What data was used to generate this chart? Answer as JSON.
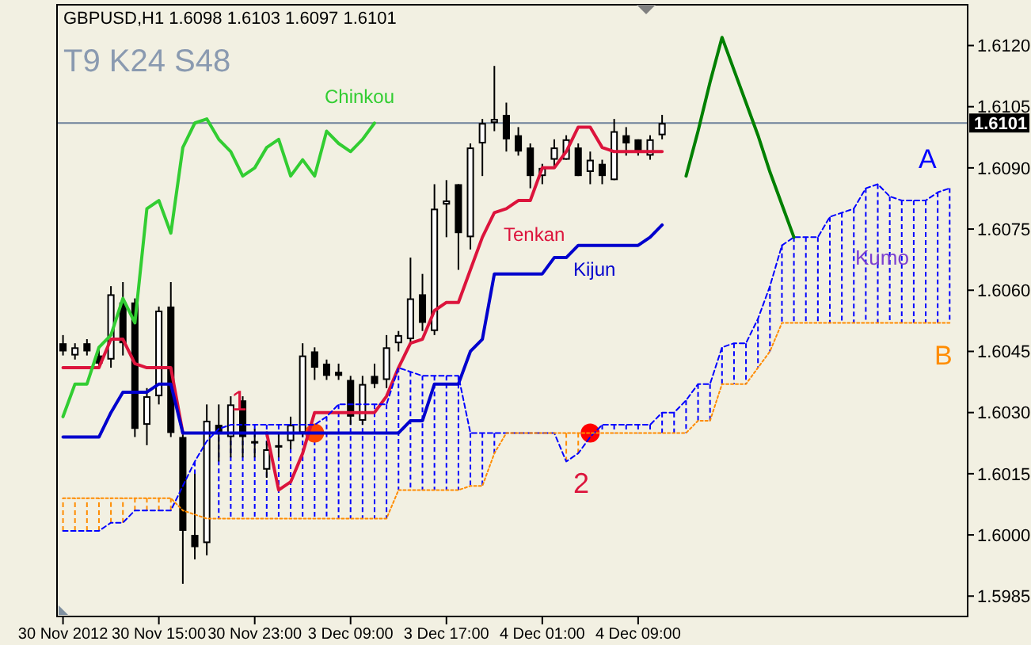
{
  "chart_data": {
    "type": "candlestick",
    "title": "GBPUSD,H1  1.6098 1.6103 1.6097 1.6101",
    "categories": [
      "30 Nov 2012",
      null,
      null,
      null,
      null,
      null,
      null,
      null,
      "30 Nov 15:00",
      null,
      null,
      null,
      null,
      null,
      null,
      null,
      "30 Nov 23:00",
      null,
      null,
      null,
      null,
      null,
      null,
      null,
      "3 Dec 09:00",
      null,
      null,
      null,
      null,
      null,
      null,
      null,
      "3 Dec 17:00",
      null,
      null,
      null,
      null,
      null,
      null,
      null,
      "4 Dec 01:00",
      null,
      null,
      null,
      null,
      null,
      null,
      null,
      "4 Dec 09:00",
      null,
      null,
      null,
      null,
      null,
      null,
      null,
      null,
      null,
      null,
      null,
      null,
      null,
      null,
      null,
      null,
      null,
      null,
      null,
      null,
      null,
      null,
      null,
      null,
      null,
      null,
      null
    ],
    "ohlc": [
      [
        1.6047,
        1.6049,
        1.6044,
        1.6045
      ],
      [
        1.6044,
        1.6047,
        1.6043,
        1.6046
      ],
      [
        1.6047,
        1.6048,
        1.6044,
        1.6045
      ],
      [
        1.6044,
        1.6046,
        1.6041,
        1.6042
      ],
      [
        1.6043,
        1.6061,
        1.6041,
        1.6059
      ],
      [
        1.6057,
        1.6062,
        1.6044,
        1.6047
      ],
      [
        1.6057,
        1.6058,
        1.6024,
        1.6026
      ],
      [
        1.6027,
        1.6036,
        1.6022,
        1.6034
      ],
      [
        1.6034,
        1.6056,
        1.6032,
        1.6055
      ],
      [
        1.6056,
        1.6062,
        1.6024,
        1.6025
      ],
      [
        1.6024,
        1.6025,
        1.5988,
        1.6001
      ],
      [
        1.6,
        1.6015,
        1.5994,
        1.5997
      ],
      [
        1.5998,
        1.6032,
        1.5995,
        1.6028
      ],
      [
        1.6027,
        1.6032,
        1.6018,
        1.6025
      ],
      [
        1.6024,
        1.6034,
        1.6019,
        1.6032
      ],
      [
        1.6033,
        1.6034,
        1.6019,
        1.6024
      ],
      [
        1.6023,
        1.6026,
        1.6019,
        1.6023
      ],
      [
        1.6016,
        1.6023,
        1.6014,
        1.6021
      ],
      [
        1.6022,
        1.6025,
        1.6019,
        1.6022
      ],
      [
        1.6023,
        1.6029,
        1.6021,
        1.6027
      ],
      [
        1.6025,
        1.6047,
        1.6024,
        1.6044
      ],
      [
        1.6045,
        1.6046,
        1.6038,
        1.6041
      ],
      [
        1.6042,
        1.6043,
        1.6038,
        1.6039
      ],
      [
        1.604,
        1.6042,
        1.6038,
        1.6039
      ],
      [
        1.6038,
        1.6039,
        1.6027,
        1.6029
      ],
      [
        1.6028,
        1.6039,
        1.6027,
        1.6037
      ],
      [
        1.6039,
        1.6042,
        1.6036,
        1.6037
      ],
      [
        1.6038,
        1.6049,
        1.6036,
        1.6046
      ],
      [
        1.6047,
        1.605,
        1.6045,
        1.6049
      ],
      [
        1.6048,
        1.6068,
        1.6047,
        1.6058
      ],
      [
        1.6059,
        1.6064,
        1.605,
        1.6052
      ],
      [
        1.605,
        1.6086,
        1.6049,
        1.608
      ],
      [
        1.6081,
        1.6087,
        1.6073,
        1.6082
      ],
      [
        1.6086,
        1.6086,
        1.6065,
        1.6074
      ],
      [
        1.6073,
        1.6096,
        1.607,
        1.6095
      ],
      [
        1.6096,
        1.6102,
        1.6088,
        1.6101
      ],
      [
        1.6101,
        1.6115,
        1.6099,
        1.6102
      ],
      [
        1.6103,
        1.6106,
        1.6094,
        1.6097
      ],
      [
        1.6098,
        1.61,
        1.6093,
        1.6094
      ],
      [
        1.6095,
        1.6096,
        1.6085,
        1.6088
      ],
      [
        1.6088,
        1.6091,
        1.6086,
        1.609
      ],
      [
        1.6092,
        1.6097,
        1.609,
        1.6095
      ],
      [
        1.6092,
        1.6098,
        1.6092,
        1.6097
      ],
      [
        1.6095,
        1.6096,
        1.6088,
        1.6088
      ],
      [
        1.6089,
        1.6094,
        1.6086,
        1.6092
      ],
      [
        1.6091,
        1.6092,
        1.6086,
        1.6088
      ],
      [
        1.6087,
        1.6102,
        1.6087,
        1.6099
      ],
      [
        1.6098,
        1.61,
        1.6093,
        1.6096
      ],
      [
        1.6097,
        1.6097,
        1.6093,
        1.6094
      ],
      [
        1.6093,
        1.6098,
        1.6092,
        1.6097
      ],
      [
        1.6098,
        1.6103,
        1.6097,
        1.6101
      ],
      null,
      null,
      null,
      null,
      null,
      null,
      null,
      null,
      null,
      null,
      null,
      null,
      null,
      null,
      null,
      null,
      null,
      null,
      null,
      null,
      null,
      null,
      null,
      null,
      null
    ],
    "series": [
      {
        "name": "Tenkan",
        "type": "line",
        "color": "#dc143c",
        "values": [
          1.6041,
          1.6041,
          1.6041,
          1.6041,
          1.6048,
          1.6048,
          1.6042,
          1.6041,
          1.6041,
          1.6041,
          1.6025,
          null,
          null,
          null,
          null,
          null,
          null,
          1.6025,
          1.6011,
          1.6013,
          1.602,
          1.603,
          1.603,
          1.603,
          1.603,
          1.603,
          1.603,
          1.6034,
          1.6041,
          1.6047,
          1.6048,
          1.6055,
          1.6057,
          1.6057,
          1.6065,
          1.6073,
          1.6079,
          1.608,
          1.6082,
          1.6082,
          1.609,
          1.609,
          1.6094,
          1.61,
          1.61,
          1.6095,
          1.6094,
          1.6094,
          1.6094,
          1.6094,
          1.6094,
          null,
          null,
          null,
          null,
          null,
          null,
          null,
          null,
          null,
          null,
          null,
          null,
          null,
          null,
          null,
          null,
          null,
          null,
          null,
          null,
          null,
          null,
          null,
          null,
          null
        ]
      },
      {
        "name": "Kijun",
        "type": "line",
        "color": "#0000cd",
        "values": [
          1.6024,
          1.6024,
          1.6024,
          1.6024,
          1.603,
          1.6035,
          1.6035,
          1.6035,
          1.6037,
          1.6037,
          1.6025,
          1.6025,
          1.6025,
          1.6025,
          1.6025,
          1.6025,
          1.6025,
          1.6025,
          1.6025,
          1.6025,
          1.6025,
          1.6025,
          1.6025,
          1.6025,
          1.6025,
          1.6025,
          1.6025,
          1.6025,
          1.6025,
          1.6028,
          1.6028,
          1.6037,
          1.6037,
          1.6037,
          1.6045,
          1.6048,
          1.6064,
          1.6064,
          1.6064,
          1.6064,
          1.6064,
          1.6068,
          1.6068,
          1.6071,
          1.6071,
          1.6071,
          1.6071,
          1.6071,
          1.6071,
          1.6073,
          1.6076,
          null,
          null,
          null,
          null,
          null,
          null,
          null,
          null,
          null,
          null,
          null,
          null,
          null,
          null,
          null,
          null,
          null,
          null,
          null,
          null,
          null,
          null,
          null,
          null,
          null
        ]
      },
      {
        "name": "Chinkou",
        "type": "line",
        "color": "#32cd32",
        "values": [
          1.6029,
          1.6037,
          1.6037,
          1.6046,
          1.6049,
          1.6058,
          1.6052,
          1.608,
          1.6082,
          1.6074,
          1.6095,
          1.6101,
          1.6102,
          1.6097,
          1.6094,
          1.6088,
          1.609,
          1.6095,
          1.6097,
          1.6088,
          1.6092,
          1.6088,
          1.6099,
          1.6096,
          1.6094,
          1.6097,
          1.6101,
          null,
          null,
          null,
          null,
          null,
          null,
          null,
          null,
          null,
          null,
          null,
          null,
          null,
          null,
          null,
          null,
          null,
          null,
          null,
          null,
          null,
          null,
          null,
          null,
          null,
          null,
          null,
          null,
          null,
          null,
          null,
          null,
          null,
          null,
          null,
          null,
          null,
          null,
          null,
          null,
          null,
          null,
          null,
          null,
          null,
          null,
          null,
          null,
          null
        ]
      },
      {
        "name": "A",
        "type": "line",
        "line_style": "dashed",
        "color": "#0000ff",
        "values": [
          1.6001,
          1.6001,
          1.6001,
          1.6001,
          1.6003,
          1.6003,
          1.6006,
          1.6006,
          1.6006,
          1.6006,
          1.6012,
          1.6018,
          1.6023,
          1.6026,
          1.6027,
          1.6027,
          1.6027,
          1.6027,
          1.6027,
          1.6027,
          1.6027,
          1.6027,
          1.6029,
          1.6032,
          1.6032,
          1.6032,
          1.6032,
          1.6032,
          1.6041,
          1.604,
          1.6039,
          1.6039,
          1.6039,
          1.6039,
          1.6025,
          1.6025,
          1.6025,
          1.6025,
          1.6025,
          1.6025,
          1.6025,
          1.6025,
          1.6018,
          1.602,
          1.6024,
          1.6027,
          1.6027,
          1.6027,
          1.6027,
          1.6027,
          1.603,
          1.603,
          1.6033,
          1.6037,
          1.6037,
          1.6046,
          1.6047,
          1.6047,
          1.6053,
          1.6061,
          1.6071,
          1.6073,
          1.6073,
          1.6073,
          1.6078,
          1.6079,
          1.608,
          1.6085,
          1.6086,
          1.6083,
          1.6082,
          1.6082,
          1.6082,
          1.6084,
          1.6085,
          null
        ]
      },
      {
        "name": "B",
        "type": "line",
        "line_style": "dotted",
        "color": "#ff8c00",
        "values": [
          1.6009,
          1.6009,
          1.6009,
          1.6009,
          1.6009,
          1.6009,
          1.6009,
          1.6009,
          1.6009,
          1.6009,
          1.6006,
          1.6005,
          1.6004,
          1.6004,
          1.6004,
          1.6004,
          1.6004,
          1.6004,
          1.6004,
          1.6004,
          1.6004,
          1.6004,
          1.6004,
          1.6004,
          1.6004,
          1.6004,
          1.6004,
          1.6004,
          1.6011,
          1.6011,
          1.6011,
          1.6011,
          1.6011,
          1.6011,
          1.6012,
          1.6012,
          1.602,
          1.6025,
          1.6025,
          1.6025,
          1.6025,
          1.6025,
          1.6025,
          1.6025,
          1.6025,
          1.6025,
          1.6025,
          1.6025,
          1.6025,
          1.6025,
          1.6025,
          1.6025,
          1.6025,
          1.6028,
          1.6028,
          1.6037,
          1.6037,
          1.6037,
          1.6041,
          1.6045,
          1.6052,
          1.6052,
          1.6052,
          1.6052,
          1.6052,
          1.6052,
          1.6052,
          1.6052,
          1.6052,
          1.6052,
          1.6052,
          1.6052,
          1.6052,
          1.6052,
          1.6052,
          null
        ]
      },
      {
        "type": "line",
        "color": "#008000",
        "values": [
          null,
          null,
          null,
          null,
          null,
          null,
          null,
          null,
          null,
          null,
          null,
          null,
          null,
          null,
          null,
          null,
          null,
          null,
          null,
          null,
          null,
          null,
          null,
          null,
          null,
          null,
          null,
          null,
          null,
          null,
          null,
          null,
          null,
          null,
          null,
          null,
          null,
          null,
          null,
          null,
          null,
          null,
          null,
          null,
          null,
          null,
          null,
          null,
          null,
          null,
          null,
          null,
          1.6088,
          1.6099,
          1.6111,
          1.6122,
          1.6114,
          1.6106,
          1.6098,
          1.6089,
          1.6081,
          1.6073,
          null,
          null,
          null,
          null,
          null,
          null,
          null,
          null,
          null,
          null,
          null,
          null,
          null,
          null
        ]
      },
      {
        "type": "scatter",
        "colors": [
          null,
          null,
          null,
          null,
          null,
          null,
          null,
          null,
          null,
          null,
          null,
          null,
          null,
          null,
          null,
          null,
          null,
          null,
          null,
          null,
          null,
          "#ff4500",
          null,
          null,
          null,
          null,
          null,
          null,
          null,
          null,
          null,
          null,
          null,
          null,
          null,
          null,
          null,
          null,
          null,
          null,
          null,
          null,
          null,
          null,
          "#ff0000",
          null,
          null,
          null,
          null,
          null,
          null,
          null,
          null,
          null,
          null,
          null,
          null,
          null,
          null,
          null,
          null,
          null,
          null,
          null,
          null,
          null,
          null,
          null,
          null,
          null,
          null,
          null,
          null,
          null,
          null,
          null
        ],
        "values": [
          null,
          null,
          null,
          null,
          null,
          null,
          null,
          null,
          null,
          null,
          null,
          null,
          null,
          null,
          null,
          null,
          null,
          null,
          null,
          null,
          null,
          1.6025,
          null,
          null,
          null,
          null,
          null,
          null,
          null,
          null,
          null,
          null,
          null,
          null,
          null,
          null,
          null,
          null,
          null,
          null,
          null,
          null,
          null,
          null,
          1.6025,
          null,
          null,
          null,
          null,
          null,
          null,
          null,
          null,
          null,
          null,
          null,
          null,
          null,
          null,
          null,
          null,
          null,
          null,
          null,
          null,
          null,
          null,
          null,
          null,
          null,
          null,
          null,
          null,
          null,
          null,
          null
        ]
      }
    ],
    "ylim": [
      1.598,
      1.613
    ],
    "yticks": [
      {
        "value": 1.612,
        "label": "1.6120"
      },
      {
        "value": 1.6105,
        "label": "1.6105"
      },
      {
        "value": 1.609,
        "label": "1.6090"
      },
      {
        "value": 1.6075,
        "label": "1.6075"
      },
      {
        "value": 1.606,
        "label": "1.6060"
      },
      {
        "value": 1.6045,
        "label": "1.6045"
      },
      {
        "value": 1.603,
        "label": "1.6030"
      },
      {
        "value": 1.6015,
        "label": "1.6015"
      },
      {
        "value": 1.6,
        "label": "1.6000"
      },
      {
        "value": 1.5985,
        "label": "1.5985"
      }
    ],
    "ref_lines": [
      {
        "axis": "y",
        "value": 1.6101,
        "label": "1.6101",
        "color": "#6d7f99"
      }
    ],
    "annotations": [
      "T9 K24 S48",
      {
        "text": "1",
        "y": 1.6025
      },
      {
        "text": "2",
        "y": 1.6025
      },
      "Kumo"
    ]
  }
}
